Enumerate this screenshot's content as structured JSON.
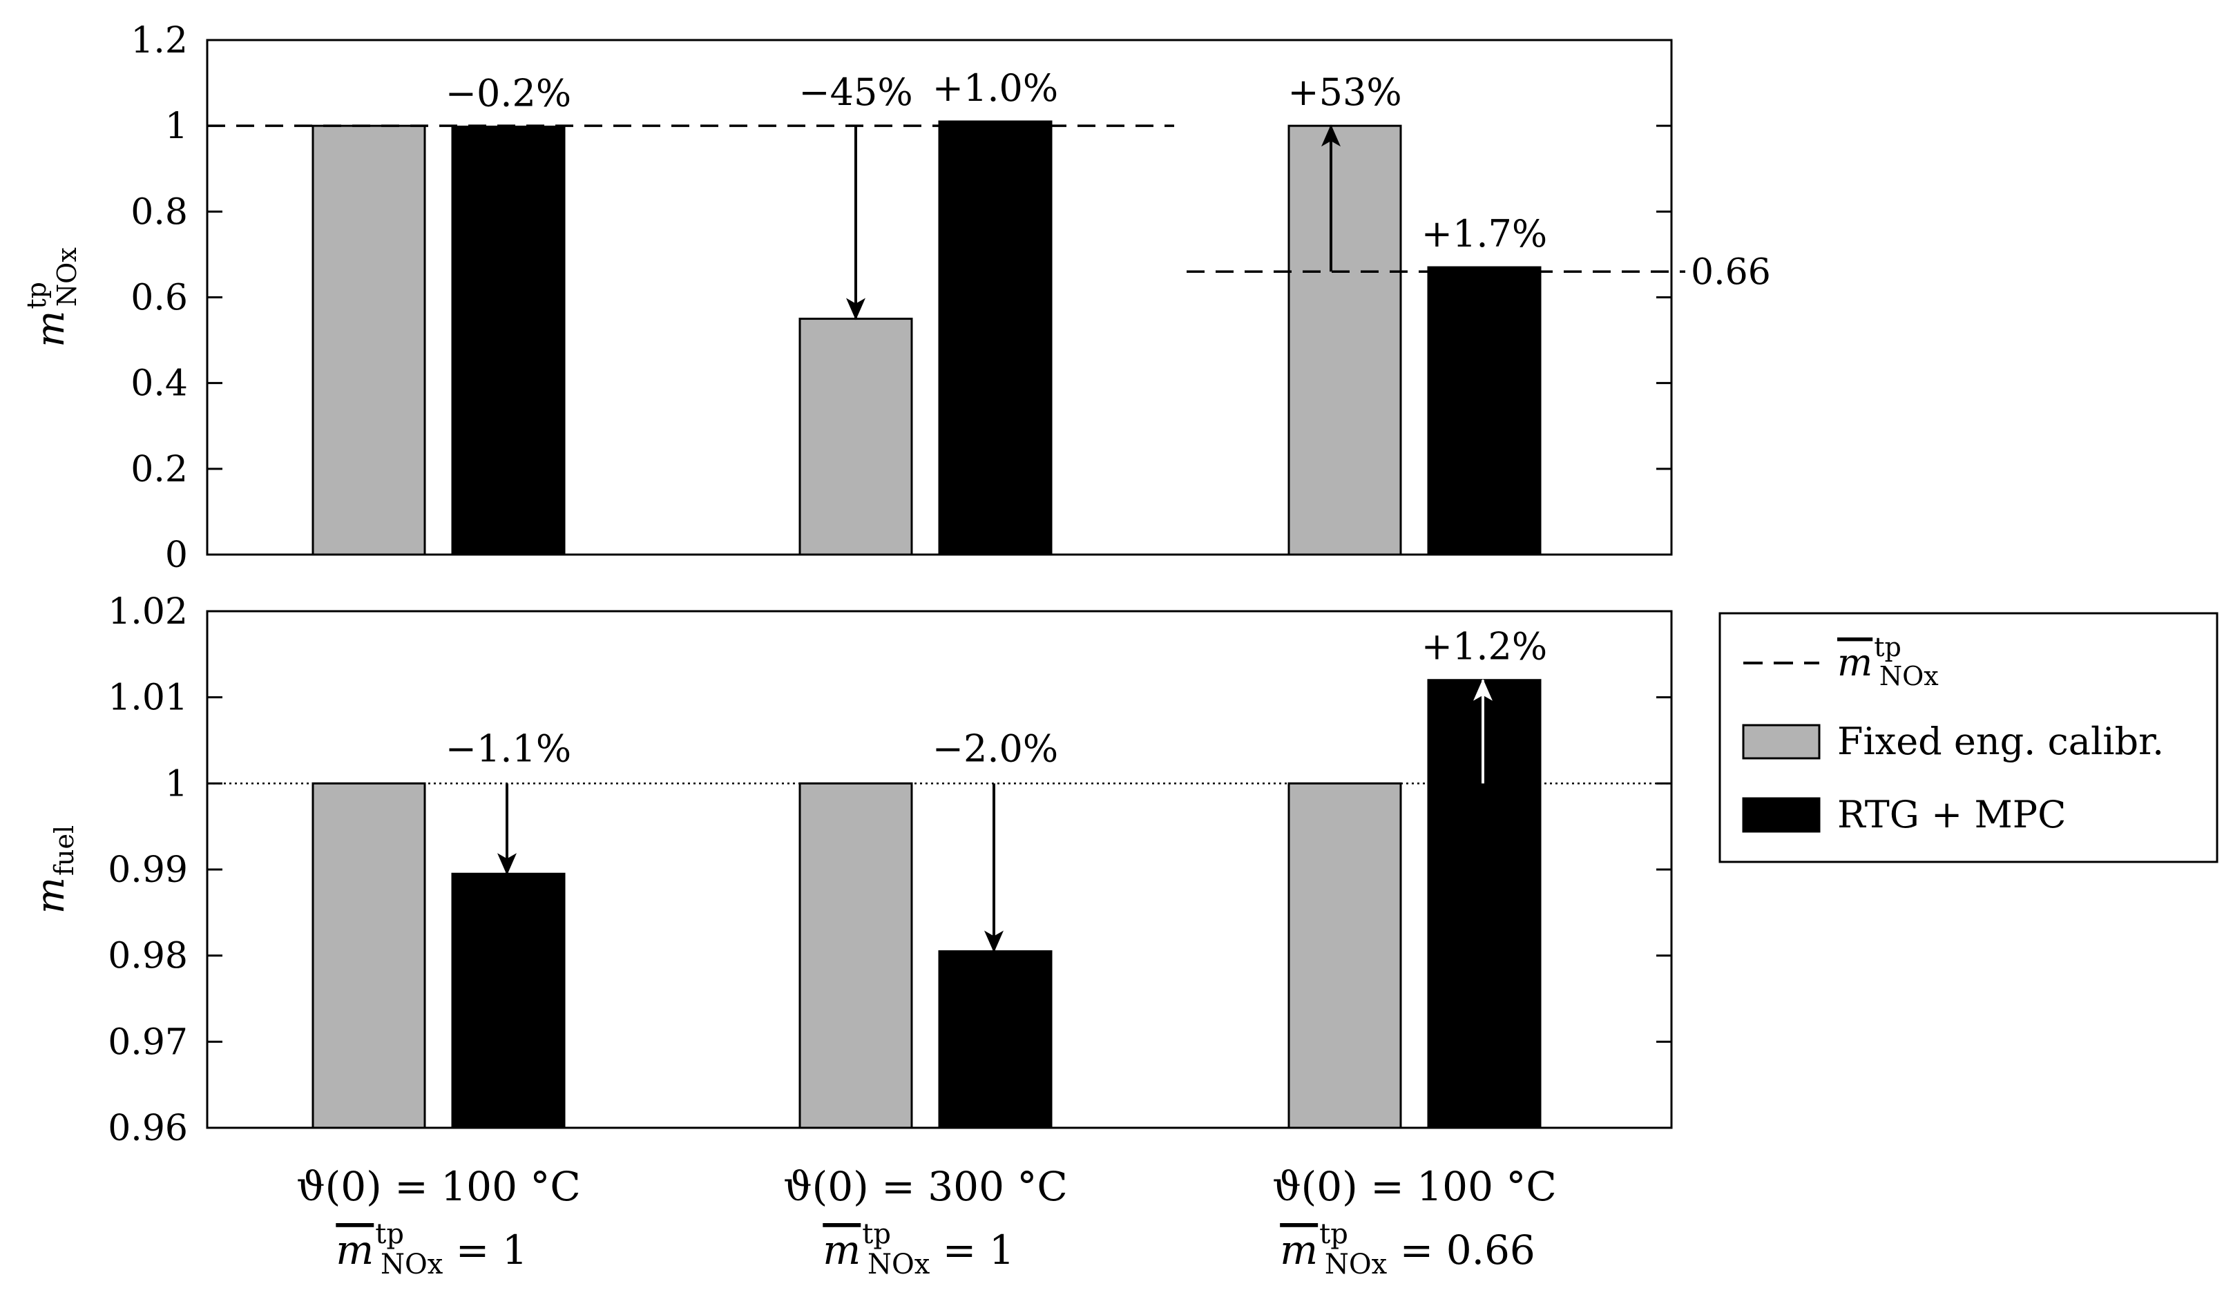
{
  "chart_data": [
    {
      "type": "bar",
      "id": "top",
      "ylabel": {
        "main": "m",
        "sup": "tp",
        "sub": "NOx"
      },
      "ylim": [
        0,
        1.2
      ],
      "yticks": [
        0,
        0.2,
        0.4,
        0.6,
        0.8,
        1,
        1.2
      ],
      "ytick_labels": [
        "0",
        "0.2",
        "0.4",
        "0.6",
        "0.8",
        "1",
        "1.2"
      ],
      "groups": [
        {
          "fixed": 1.0,
          "rtg": 0.998,
          "annotations": [
            {
              "text": "−0.2%",
              "over": "rtg"
            }
          ]
        },
        {
          "fixed": 0.55,
          "rtg": 1.01,
          "annotations": [
            {
              "text": "−45%",
              "over": "fixed"
            },
            {
              "text": "+1.0%",
              "over": "rtg"
            }
          ]
        },
        {
          "fixed": 1.0,
          "rtg": 0.67,
          "annotations": [
            {
              "text": "+53%",
              "over": "fixed"
            },
            {
              "text": "+1.7%",
              "over": "rtg"
            }
          ]
        }
      ],
      "target_lines": [
        {
          "value": 1,
          "groups": [
            0,
            1
          ]
        },
        {
          "value": 0.66,
          "groups": [
            2
          ]
        }
      ],
      "right_label": "0.66",
      "arrows": [
        {
          "group": 1,
          "from": 1.0,
          "to": 0.55,
          "color": "#000000"
        },
        {
          "group": 2,
          "from": 0.66,
          "to": 1.0,
          "color": "#000000"
        }
      ]
    },
    {
      "type": "bar",
      "id": "bottom",
      "ylabel": {
        "main": "m",
        "sub": "fuel"
      },
      "ylim": [
        0.96,
        1.02
      ],
      "yticks": [
        0.96,
        0.97,
        0.98,
        0.99,
        1,
        1.01,
        1.02
      ],
      "ytick_labels": [
        "0.96",
        "0.97",
        "0.98",
        "0.99",
        "1",
        "1.01",
        "1.02"
      ],
      "groups": [
        {
          "fixed": 1.0,
          "rtg": 0.9895,
          "annotations": [
            {
              "text": "−1.1%",
              "over": "line"
            }
          ]
        },
        {
          "fixed": 1.0,
          "rtg": 0.9805,
          "annotations": [
            {
              "text": "−2.0%",
              "over": "line"
            }
          ]
        },
        {
          "fixed": 1.0,
          "rtg": 1.012,
          "annotations": [
            {
              "text": "+1.2%",
              "over": "rtg"
            }
          ]
        }
      ],
      "reference_line": 1,
      "arrows": [
        {
          "group": 0,
          "from": 1.0,
          "to": 0.9895,
          "color": "#000000"
        },
        {
          "group": 1,
          "from": 1.0,
          "to": 0.9805,
          "color": "#000000"
        },
        {
          "group": 2,
          "from": 1.0,
          "to": 1.012,
          "color": "#ffffff"
        }
      ]
    }
  ],
  "categories": [
    {
      "line1": "ϑ(0) = 100 °C",
      "line2_value": "1"
    },
    {
      "line1": "ϑ(0) = 300 °C",
      "line2_value": "1"
    },
    {
      "line1": "ϑ(0) = 100 °C",
      "line2_value": "0.66"
    }
  ],
  "category_line2": {
    "main": "m",
    "sup": "tp",
    "sub": "NOx",
    "eq": "="
  },
  "legend": {
    "items": [
      {
        "type": "dashed",
        "symbol": {
          "main": "m",
          "sup": "tp",
          "sub": "NOx"
        }
      },
      {
        "type": "fill",
        "label": "Fixed eng. calibr.",
        "color": "#b3b3b3"
      },
      {
        "type": "fill",
        "label": "RTG + MPC",
        "color": "#000000"
      }
    ]
  },
  "colors": {
    "fixed": "#b3b3b3",
    "rtg": "#000000",
    "axis": "#000000"
  }
}
